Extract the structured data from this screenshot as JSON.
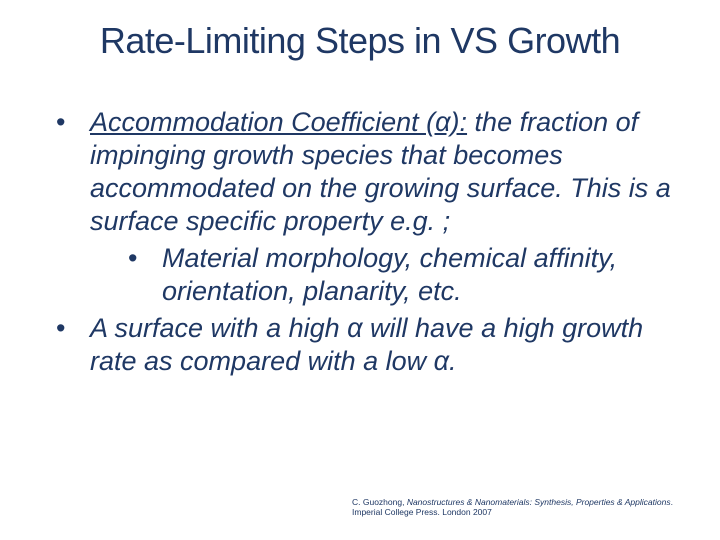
{
  "colors": {
    "text": "#1f3864",
    "background": "#ffffff"
  },
  "typography": {
    "title_fontsize": 36,
    "body_fontsize": 27,
    "citation_fontsize": 8.5,
    "font_family": "Arial",
    "body_italic": true
  },
  "title": "Rate-Limiting Steps in VS Growth",
  "bullets": [
    {
      "term": "Accommodation Coefficient (α):",
      "rest": " the fraction of impinging growth species that becomes accommodated on the growing surface. This is a surface specific property e.g. ;",
      "sub": [
        "Material morphology, chemical affinity, orientation, planarity, etc."
      ]
    },
    {
      "text": "A surface with a high α will have a high growth rate as compared with a low α."
    }
  ],
  "citation": {
    "author": "C. Guozhong, ",
    "book": "Nanostructures & Nanomaterials: Synthesis, Properties & Applications",
    "tail": ". Imperial College Press. London 2007"
  }
}
